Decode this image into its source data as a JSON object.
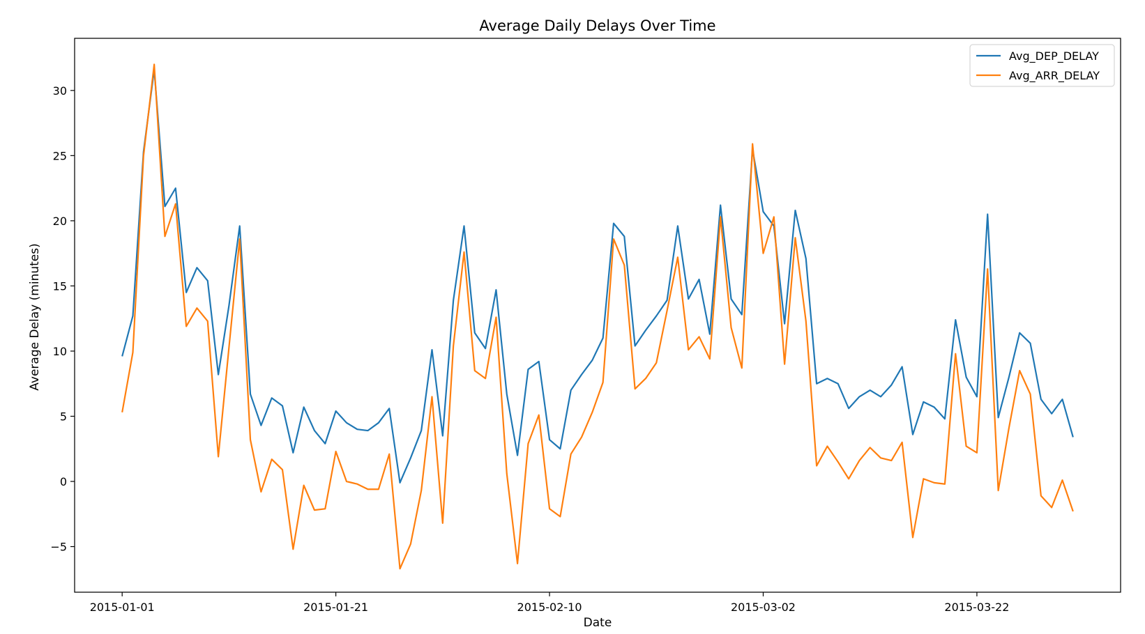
{
  "chart_data": {
    "type": "line",
    "title": "Average Daily Delays Over Time",
    "xlabel": "Date",
    "ylabel": "Average Delay (minutes)",
    "x_start": "2015-01-01",
    "x_end": "2015-03-31",
    "xlim": [
      "2015-01-01",
      "2015-03-31"
    ],
    "ylim": [
      -8.5,
      34.0
    ],
    "x_ticks": [
      {
        "label": "2015-01-01",
        "value": "2015-01-01"
      },
      {
        "label": "2015-01-21",
        "value": "2015-01-21"
      },
      {
        "label": "2015-02-10",
        "value": "2015-02-10"
      },
      {
        "label": "2015-03-02",
        "value": "2015-03-02"
      },
      {
        "label": "2015-03-22",
        "value": "2015-03-22"
      }
    ],
    "y_ticks": [
      {
        "label": "−5",
        "value": -5
      },
      {
        "label": "0",
        "value": 0
      },
      {
        "label": "5",
        "value": 5
      },
      {
        "label": "10",
        "value": 10
      },
      {
        "label": "15",
        "value": 15
      },
      {
        "label": "20",
        "value": 20
      },
      {
        "label": "25",
        "value": 25
      },
      {
        "label": "30",
        "value": 30
      }
    ],
    "grid": false,
    "legend": "top-right",
    "series": [
      {
        "name": "Avg_DEP_DELAY",
        "color": "#1f77b4",
        "values": [
          9.6,
          12.7,
          25.3,
          31.6,
          21.1,
          22.5,
          14.5,
          16.4,
          15.4,
          8.2,
          13.5,
          19.6,
          6.7,
          4.3,
          6.4,
          5.8,
          2.2,
          5.7,
          3.9,
          2.9,
          5.4,
          4.5,
          4.0,
          3.9,
          4.5,
          5.6,
          -0.1,
          1.8,
          3.9,
          10.1,
          3.5,
          13.9,
          19.6,
          11.4,
          10.2,
          14.7,
          6.7,
          2.0,
          8.6,
          9.2,
          3.2,
          2.5,
          7.0,
          8.2,
          9.3,
          11.0,
          19.8,
          18.8,
          10.4,
          11.6,
          12.7,
          13.9,
          19.6,
          14.0,
          15.5,
          11.3,
          21.2,
          14.0,
          12.8,
          25.5,
          20.7,
          19.6,
          12.1,
          20.8,
          17.1,
          7.5,
          7.9,
          7.5,
          5.6,
          6.5,
          7.0,
          6.5,
          7.4,
          8.8,
          3.6,
          6.1,
          5.7,
          4.8,
          12.4,
          8.0,
          6.5,
          20.5,
          4.9,
          8.0,
          11.4,
          10.6,
          6.3,
          5.2,
          6.3,
          3.4
        ]
      },
      {
        "name": "Avg_ARR_DELAY",
        "color": "#ff7f0e",
        "values": [
          5.3,
          9.9,
          25.0,
          32.0,
          18.8,
          21.3,
          11.9,
          13.3,
          12.3,
          1.9,
          10.3,
          18.6,
          3.2,
          -0.8,
          1.7,
          0.9,
          -5.2,
          -0.3,
          -2.2,
          -2.1,
          2.3,
          0.0,
          -0.2,
          -0.6,
          -0.6,
          2.1,
          -6.7,
          -4.8,
          -0.7,
          6.5,
          -3.2,
          10.4,
          17.6,
          8.5,
          7.9,
          12.6,
          0.6,
          -6.3,
          2.9,
          5.1,
          -2.1,
          -2.7,
          2.1,
          3.4,
          5.3,
          7.6,
          18.6,
          16.6,
          7.1,
          7.9,
          9.1,
          13.1,
          17.2,
          10.1,
          11.1,
          9.4,
          20.3,
          11.8,
          8.7,
          25.9,
          17.5,
          20.3,
          9.0,
          18.7,
          12.3,
          1.2,
          2.7,
          1.5,
          0.2,
          1.6,
          2.6,
          1.8,
          1.6,
          3.0,
          -4.3,
          0.2,
          -0.1,
          -0.2,
          9.8,
          2.7,
          2.2,
          16.3,
          -0.7,
          4.1,
          8.5,
          6.7,
          -1.1,
          -2.0,
          0.1,
          -2.3
        ]
      }
    ]
  }
}
